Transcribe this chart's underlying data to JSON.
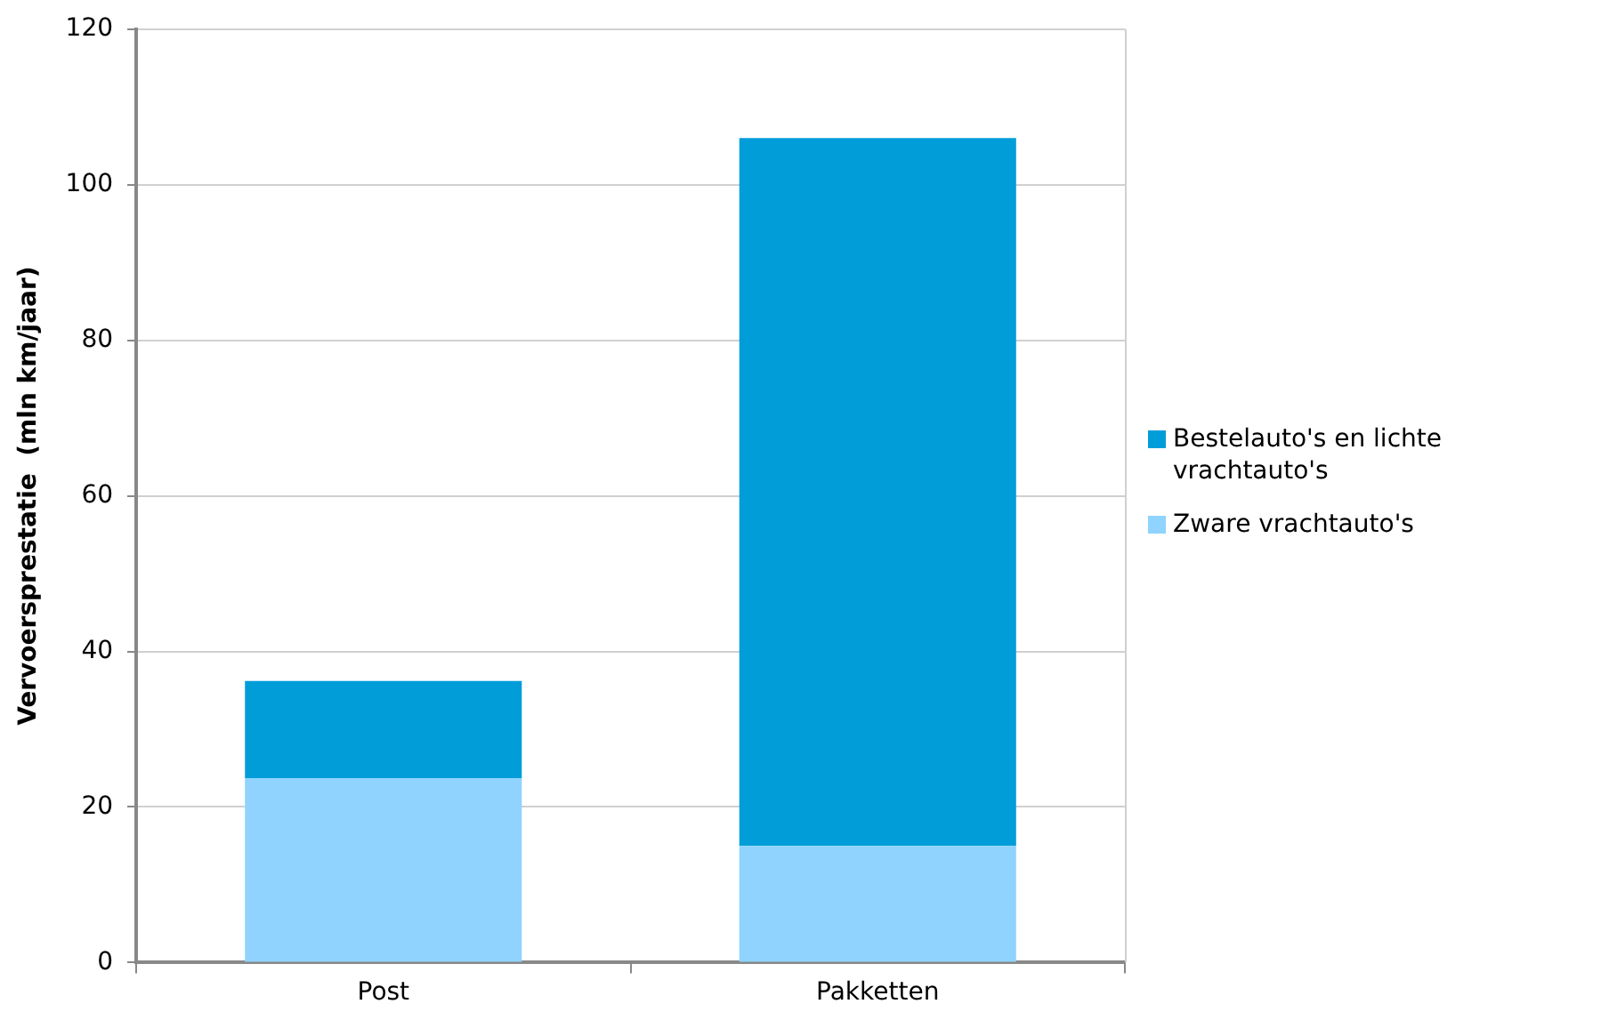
{
  "chart_data": {
    "type": "bar",
    "stacked": true,
    "ylabel": "Vervoersprestatie  (mln km/jaar)",
    "categories": [
      "Post",
      "Pakketten"
    ],
    "series": [
      {
        "name": "Zware vrachtauto's",
        "color": "#8fd3fe",
        "values": [
          23.7,
          15.0
        ]
      },
      {
        "name": "Bestelauto's en lichte vrachtauto's",
        "color": "#009dd9",
        "values": [
          12.5,
          91.0
        ]
      }
    ],
    "ylim": [
      0,
      120
    ],
    "yticks": [
      0,
      20,
      40,
      60,
      80,
      100,
      120
    ],
    "grid": "y",
    "legend": "right"
  }
}
